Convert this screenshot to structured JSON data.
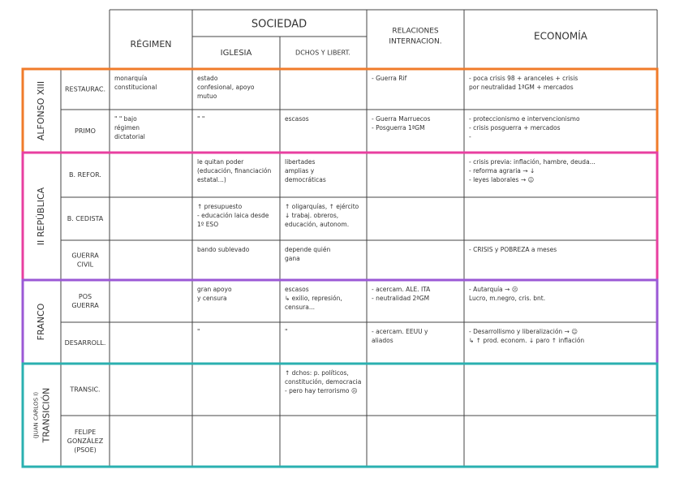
{
  "header": {
    "regimen": "RÉGIMEN",
    "sociedad": "SOCIEDAD",
    "iglesia": "IGLESIA",
    "derechos": "DCHOS Y LIBERT.",
    "relaciones": [
      "RELACIONES",
      "INTERNACION."
    ],
    "economia": "ECONOMÍA"
  },
  "groups": [
    {
      "label": [
        "ALFONSO XIII"
      ],
      "color": "#f07b2a",
      "rows": [
        {
          "label": [
            "RESTAURAC."
          ],
          "cells": [
            [
              "monarquía",
              "constitucional"
            ],
            [
              "estado",
              "confesional, apoyo",
              "mutuo"
            ],
            [],
            [
              "- Guerra Rif"
            ],
            [
              "- poca crisis 98 + aranceles + crisis",
              "por neutralidad 1ªGM + mercados"
            ]
          ]
        },
        {
          "label": [
            "PRIMO"
          ],
          "cells": [
            [
              "\" \" bajo",
              "régimen",
              "dictatorial"
            ],
            [
              "\" \""
            ],
            [
              "escasos"
            ],
            [
              "- Guerra Marruecos",
              "- Posguerra 1ªGM"
            ],
            [
              "- proteccionismo e intervencionismo",
              "- crisis posguerra + mercados",
              "-"
            ]
          ]
        }
      ]
    },
    {
      "label": [
        "II REPÚBLICA"
      ],
      "color": "#e83fa0",
      "rows": [
        {
          "label": [
            "B. REFOR."
          ],
          "cells": [
            [],
            [
              "le quitan poder",
              "(educación, financiación",
              "estatal...)"
            ],
            [
              "libertades",
              "amplias y",
              "democráticas"
            ],
            [],
            [
              "- crisis previa: inflación, hambre, deuda...",
              "- reforma agraria → ↓",
              "- leyes laborales → ☺"
            ]
          ]
        },
        {
          "label": [
            "B. CEDISTA"
          ],
          "cells": [
            [],
            [
              "↑ presupuesto",
              "- educación laica desde",
              "1º ESO"
            ],
            [
              "↑ oligarquías, ↑ ejército",
              "↓ trabaj. obreros,",
              "educación, autonom."
            ],
            [],
            []
          ]
        },
        {
          "label": [
            "GUERRA",
            "CIVIL"
          ],
          "cells": [
            [],
            [
              "bando sublevado"
            ],
            [
              "depende quién",
              "gana"
            ],
            [],
            [
              "- CRISIS y POBREZA a meses"
            ]
          ]
        }
      ]
    },
    {
      "label": [
        "FRANCO"
      ],
      "color": "#9b59d6",
      "rows": [
        {
          "label": [
            "POS",
            "GUERRA"
          ],
          "cells": [
            [],
            [
              "gran apoyo",
              "y censura"
            ],
            [
              "escasos",
              "↳ exilio, represión,",
              "censura..."
            ],
            [
              "- acercam. ALE. ITA",
              "- neutralidad 2ªGM"
            ],
            [
              "- Autarquía → ☹",
              "Lucro, m.negro, cris. bnt."
            ]
          ]
        },
        {
          "label": [
            "DESARROLL."
          ],
          "cells": [
            [],
            [
              "\""
            ],
            [
              "\""
            ],
            [
              "- acercam. EEUU y",
              "aliados"
            ],
            [
              "- Desarrollismo y liberalización → ☺",
              "↳ ↑ prod. econom. ↓ paro ↑ inflación"
            ]
          ]
        }
      ]
    },
    {
      "label": [
        "(JUAN CARLOS I)",
        "TRANSICIÓN"
      ],
      "color": "#2ab0b0",
      "rows": [
        {
          "label": [
            "TRANSIC."
          ],
          "cells": [
            [],
            [],
            [
              "↑ dchos: p. políticos,",
              "constitución, democracia",
              "- pero hay terrorismo ☹"
            ],
            [],
            []
          ]
        },
        {
          "label": [
            "FELIPE",
            "GONZÁLEZ",
            "(PSOE)"
          ],
          "cells": [
            [],
            [],
            [],
            [],
            []
          ]
        }
      ]
    }
  ]
}
